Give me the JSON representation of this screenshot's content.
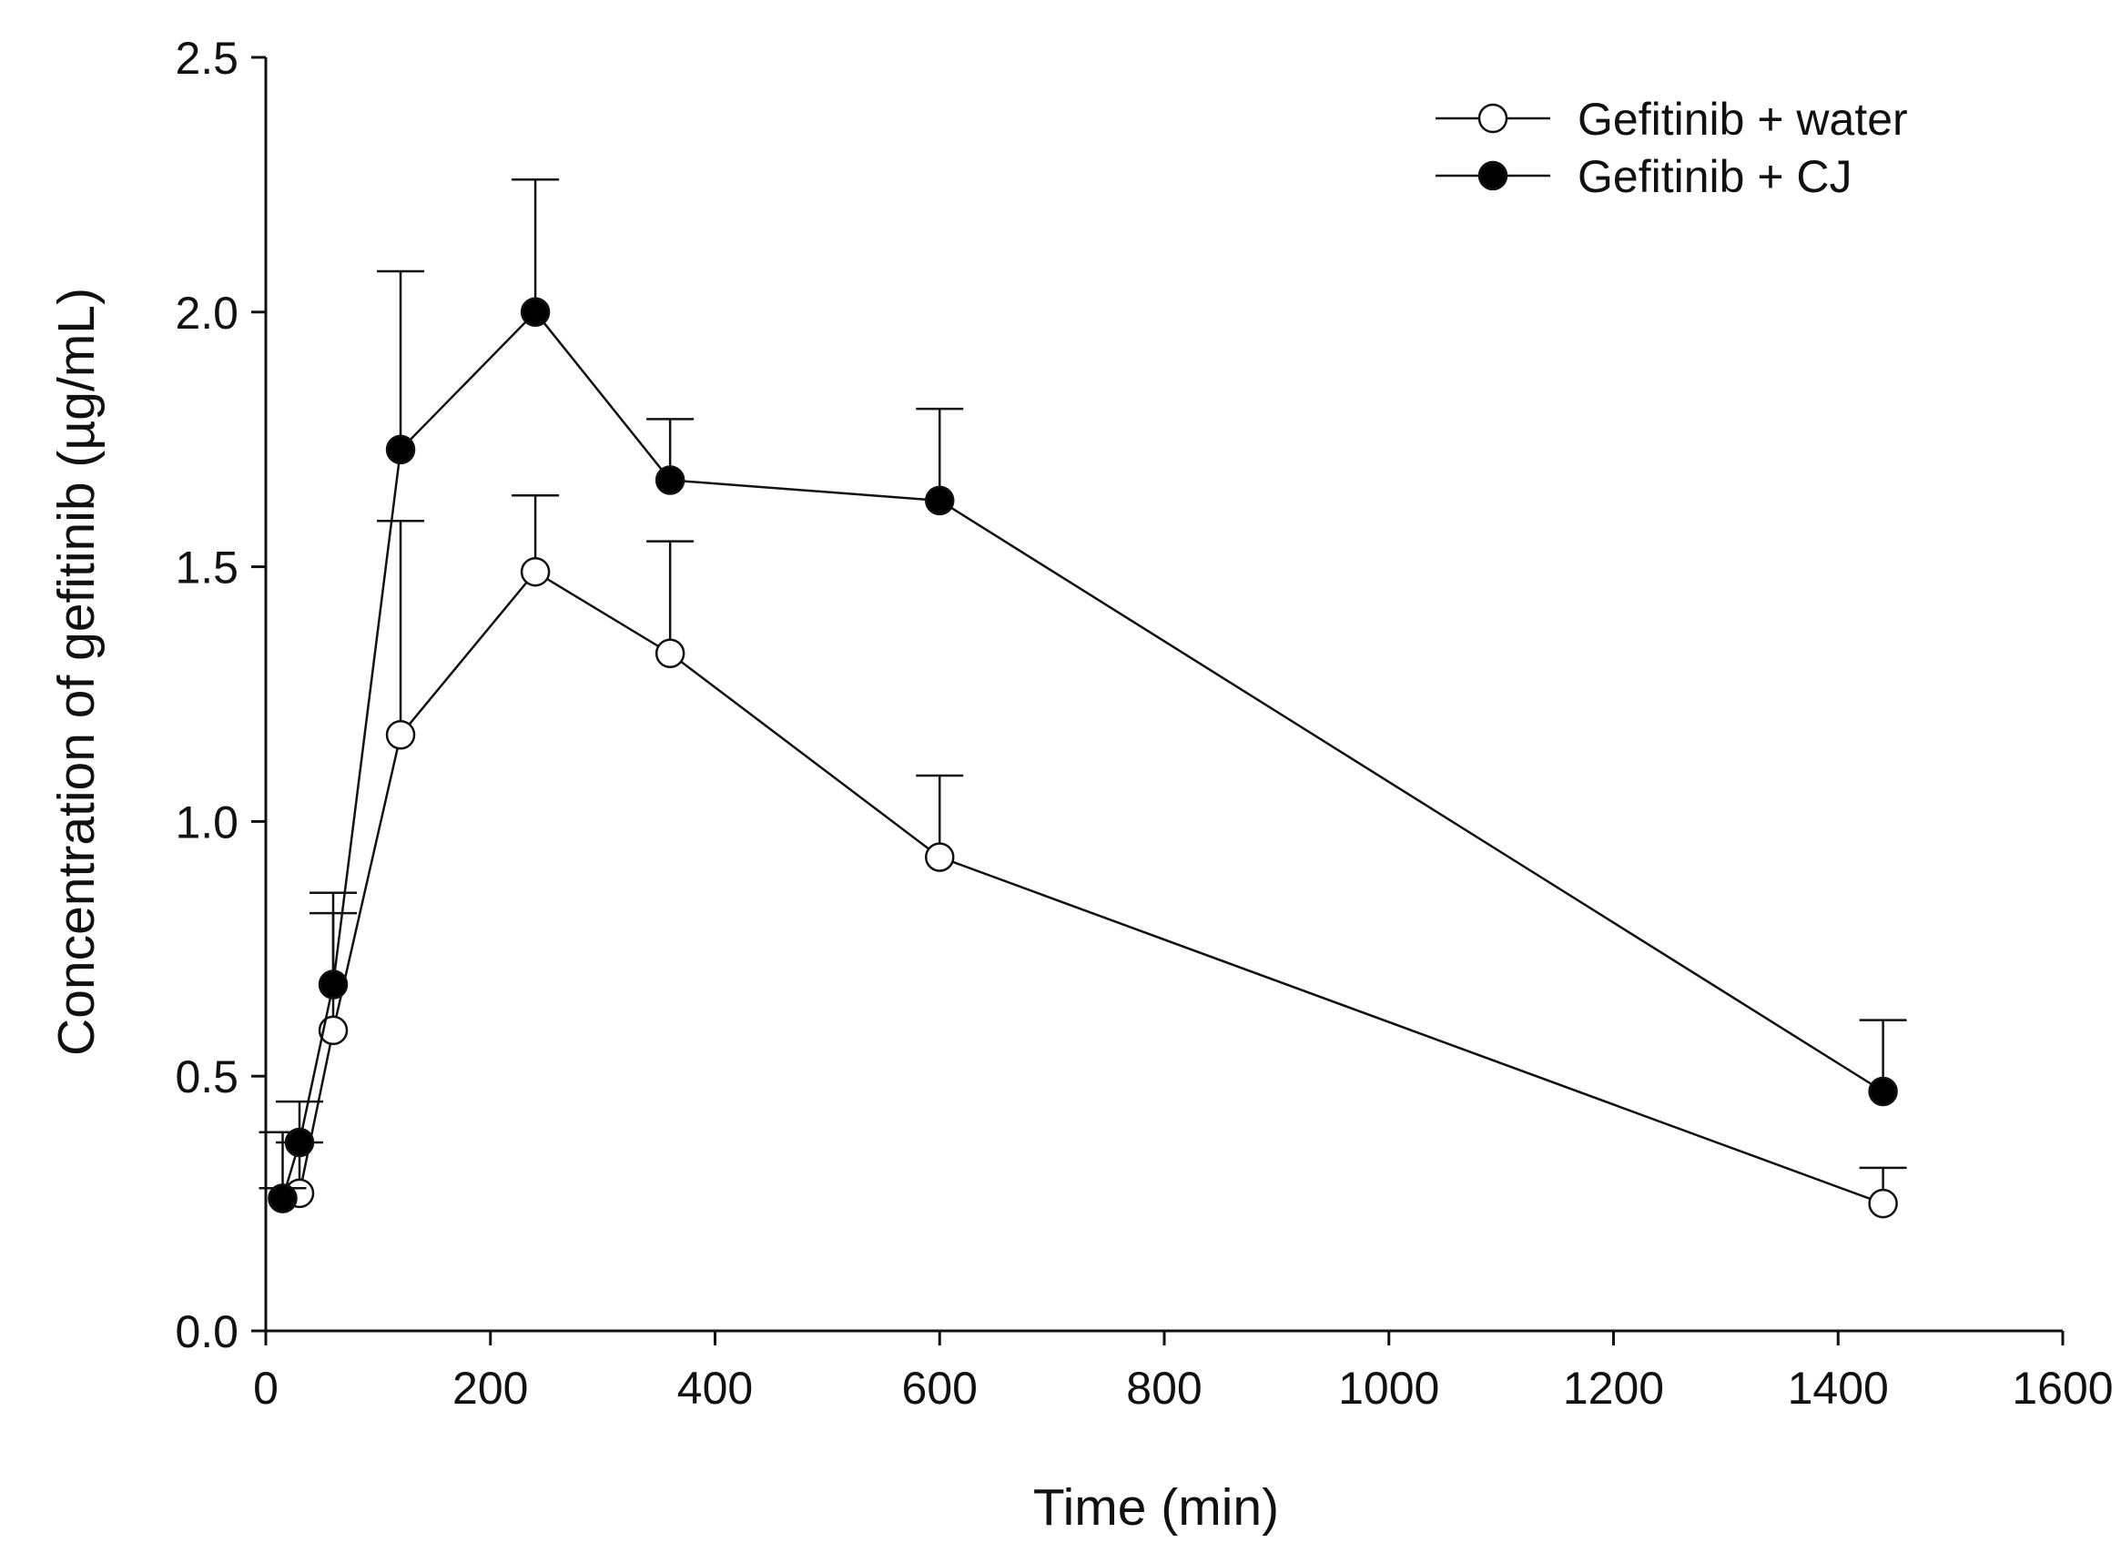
{
  "chart_data": {
    "type": "line",
    "title": "",
    "xlabel": "Time (min)",
    "ylabel": "Concentration of gefitinib (µg/mL)",
    "xlim": [
      0,
      1600
    ],
    "ylim": [
      0,
      2.5
    ],
    "x_ticks": [
      0,
      200,
      400,
      600,
      800,
      1000,
      1200,
      1400,
      1600
    ],
    "x_tick_labels": [
      "0",
      "200",
      "400",
      "600",
      "800",
      "1000",
      "1200",
      "1400",
      "1600"
    ],
    "y_ticks": [
      0,
      0.5,
      1.0,
      1.5,
      2.0,
      2.5
    ],
    "y_tick_labels": [
      "0.0",
      "0.5",
      "1.0",
      "1.5",
      "2.0",
      "2.5"
    ],
    "grid": false,
    "legend_position": "top-right",
    "series": [
      {
        "name": "Gefitinib + water",
        "marker": "open-circle",
        "x": [
          15,
          30,
          60,
          120,
          240,
          360,
          600,
          1440
        ],
        "y": [
          0.26,
          0.27,
          0.59,
          1.17,
          1.49,
          1.33,
          0.93,
          0.25
        ],
        "error": [
          0.13,
          0.1,
          0.23,
          0.42,
          0.15,
          0.22,
          0.16,
          0.07
        ]
      },
      {
        "name": "Gefitinib + CJ",
        "marker": "filled-circle",
        "x": [
          15,
          30,
          60,
          120,
          240,
          360,
          600,
          1440
        ],
        "y": [
          0.26,
          0.37,
          0.68,
          1.73,
          2.0,
          1.67,
          1.63,
          0.47
        ],
        "error": [
          0.02,
          0.08,
          0.18,
          0.35,
          0.26,
          0.12,
          0.18,
          0.14
        ]
      }
    ]
  }
}
